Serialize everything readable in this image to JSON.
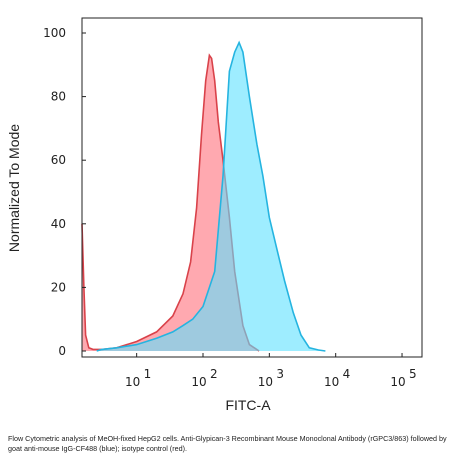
{
  "chart_data": {
    "type": "area",
    "xlabel": "FITC-A",
    "ylabel": "Normalized To Mode",
    "xscale": "log",
    "xlim": [
      1.5,
      200000
    ],
    "ylim": [
      0,
      100
    ],
    "grid": false,
    "legend": "none",
    "y_ticks": [
      "0",
      "20",
      "40",
      "60",
      "80",
      "100"
    ],
    "x_ticks": [
      {
        "value": 10,
        "base": "10",
        "exp": "1"
      },
      {
        "value": 100,
        "base": "10",
        "exp": "2"
      },
      {
        "value": 1000,
        "base": "10",
        "exp": "3"
      },
      {
        "value": 10000,
        "base": "10",
        "exp": "4"
      },
      {
        "value": 100000,
        "base": "10",
        "exp": "5"
      }
    ],
    "series": [
      {
        "color_fill": "#ff9aa2",
        "color_line": "#d9424a",
        "x": [
          1.5,
          1.6,
          1.7,
          1.9,
          2.2,
          3,
          5,
          10,
          20,
          35,
          50,
          65,
          80,
          95,
          110,
          125,
          135,
          150,
          170,
          200,
          250,
          300,
          400,
          500,
          700
        ],
        "y": [
          40,
          20,
          5,
          1,
          0.5,
          0.5,
          1,
          3,
          6,
          11,
          18,
          28,
          45,
          68,
          85,
          93,
          92,
          85,
          72,
          60,
          42,
          25,
          8,
          2,
          0
        ]
      },
      {
        "color_fill": "#5ee1ff",
        "color_line": "#25b4e0",
        "x": [
          2.5,
          3,
          5,
          10,
          20,
          35,
          50,
          70,
          100,
          150,
          200,
          250,
          300,
          350,
          400,
          500,
          650,
          800,
          1000,
          1300,
          1700,
          2300,
          3000,
          4000,
          5500,
          7000
        ],
        "y": [
          0,
          0.5,
          1,
          2,
          4,
          6,
          8,
          10,
          14,
          25,
          55,
          88,
          94,
          97,
          94,
          80,
          65,
          55,
          42,
          32,
          22,
          12,
          5,
          1,
          0.3,
          0
        ]
      }
    ]
  },
  "caption": "Flow Cytometric analysis of MeOH-fixed HepG2 cells. Anti-Glypican-3 Recombinant Mouse Monoclonal Antibody (rGPC3/863) followed by goat anti-mouse IgG-CF488 (blue); isotype control (red)."
}
